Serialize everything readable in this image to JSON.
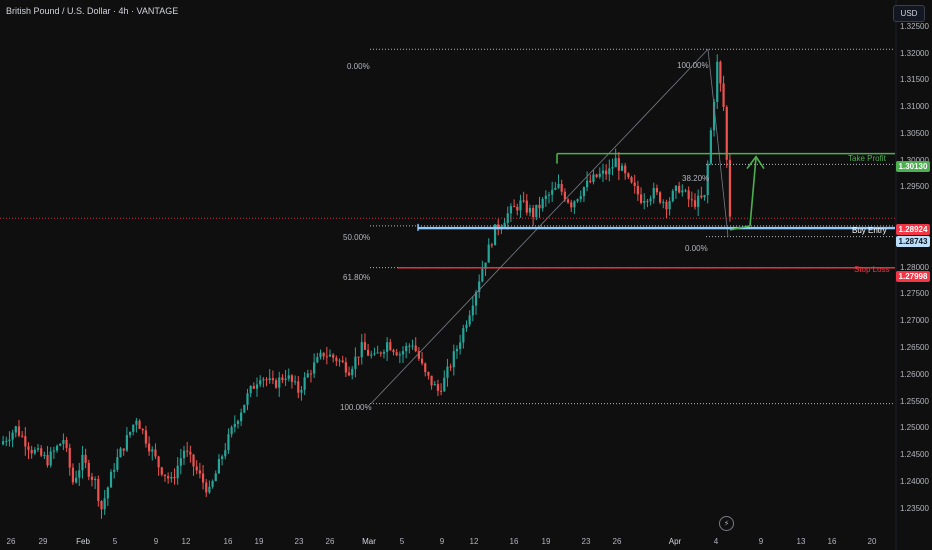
{
  "header": {
    "symbol_title": "British Pound / U.S. Dollar · 4h · VANTAGE",
    "currency_button": "USD"
  },
  "colors": {
    "background": "#0f0f0f",
    "up_candle": "#26a69a",
    "down_candle": "#ef5350",
    "take_profit": "#4caf50",
    "stop_loss": "#f23645",
    "buy_entry_box": "#90caf9",
    "current_price_tag": "#f23645",
    "buy_entry_tag": "#bbdefb",
    "fib_text": "#b2b5be",
    "projection_arrow": "#4caf50"
  },
  "icons": {
    "alert": "lightning-bolt-icon"
  },
  "chart_data": {
    "type": "candlestick",
    "title": "British Pound / U.S. Dollar · 4h · VANTAGE",
    "y_axis": {
      "ticks": [
        "1.32500",
        "1.32000",
        "1.31500",
        "1.31000",
        "1.30500",
        "1.30000",
        "1.29500",
        "1.28500",
        "1.28000",
        "1.27500",
        "1.27000",
        "1.26500",
        "1.26000",
        "1.25500",
        "1.25000",
        "1.24500",
        "1.24000",
        "1.23500"
      ],
      "ylim": [
        1.231,
        1.3285
      ]
    },
    "x_axis": {
      "ticks": [
        "26",
        "29",
        "Feb",
        "5",
        "9",
        "12",
        "16",
        "19",
        "23",
        "26",
        "Mar",
        "5",
        "9",
        "12",
        "16",
        "19",
        "23",
        "26",
        "Apr",
        "4",
        "9",
        "13",
        "16",
        "20"
      ]
    },
    "levels": {
      "take_profit": {
        "label": "Take Profit",
        "price": 1.3013,
        "price_label": "1.30130"
      },
      "current_price": {
        "price": 1.28924,
        "price_label": "1.28924"
      },
      "buy_entry": {
        "label": "Buy Entry",
        "price": 1.28743,
        "price_label": "1.28743"
      },
      "stop_loss": {
        "label": "Stop Loss",
        "price": 1.27998,
        "price_label": "1.27998"
      }
    },
    "fib_large": {
      "labels": [
        "0.00%",
        "50.00%",
        "61.80%",
        "100.00%"
      ],
      "prices": [
        1.3208,
        1.2878,
        1.28,
        1.2546
      ]
    },
    "fib_small": {
      "labels": [
        "100.00%",
        "38.20%",
        "0.00%"
      ],
      "prices": [
        1.3208,
        1.2993,
        1.2858
      ]
    },
    "price_path": {
      "note_units": "x = bar index (0..230), y = price",
      "points": [
        [
          0,
          1.247
        ],
        [
          5,
          1.25
        ],
        [
          10,
          1.246
        ],
        [
          15,
          1.244
        ],
        [
          20,
          1.248
        ],
        [
          23,
          1.24
        ],
        [
          26,
          1.244
        ],
        [
          30,
          1.24
        ],
        [
          32,
          1.235
        ],
        [
          36,
          1.243
        ],
        [
          40,
          1.248
        ],
        [
          43,
          1.252
        ],
        [
          46,
          1.248
        ],
        [
          50,
          1.243
        ],
        [
          54,
          1.24
        ],
        [
          58,
          1.246
        ],
        [
          62,
          1.242
        ],
        [
          66,
          1.238
        ],
        [
          70,
          1.245
        ],
        [
          74,
          1.251
        ],
        [
          78,
          1.256
        ],
        [
          82,
          1.26
        ],
        [
          86,
          1.258
        ],
        [
          90,
          1.26
        ],
        [
          94,
          1.257
        ],
        [
          98,
          1.261
        ],
        [
          102,
          1.264
        ],
        [
          106,
          1.263
        ],
        [
          110,
          1.261
        ],
        [
          114,
          1.265
        ],
        [
          118,
          1.263
        ],
        [
          122,
          1.266
        ],
        [
          126,
          1.264
        ],
        [
          130,
          1.266
        ],
        [
          134,
          1.26
        ],
        [
          138,
          1.257
        ],
        [
          140,
          1.259
        ],
        [
          144,
          1.265
        ],
        [
          148,
          1.272
        ],
        [
          152,
          1.28
        ],
        [
          156,
          1.287
        ],
        [
          160,
          1.29
        ],
        [
          164,
          1.292
        ],
        [
          168,
          1.29
        ],
        [
          172,
          1.293
        ],
        [
          176,
          1.295
        ],
        [
          180,
          1.292
        ],
        [
          184,
          1.295
        ],
        [
          188,
          1.297
        ],
        [
          192,
          1.298
        ],
        [
          194,
          1.3
        ],
        [
          198,
          1.296
        ],
        [
          202,
          1.293
        ],
        [
          206,
          1.294
        ],
        [
          210,
          1.292
        ],
        [
          214,
          1.295
        ],
        [
          218,
          1.292
        ],
        [
          222,
          1.293
        ],
        [
          226,
          1.318
        ],
        [
          228,
          1.31
        ],
        [
          230,
          1.29
        ]
      ]
    },
    "grid": false,
    "legend": "none"
  }
}
